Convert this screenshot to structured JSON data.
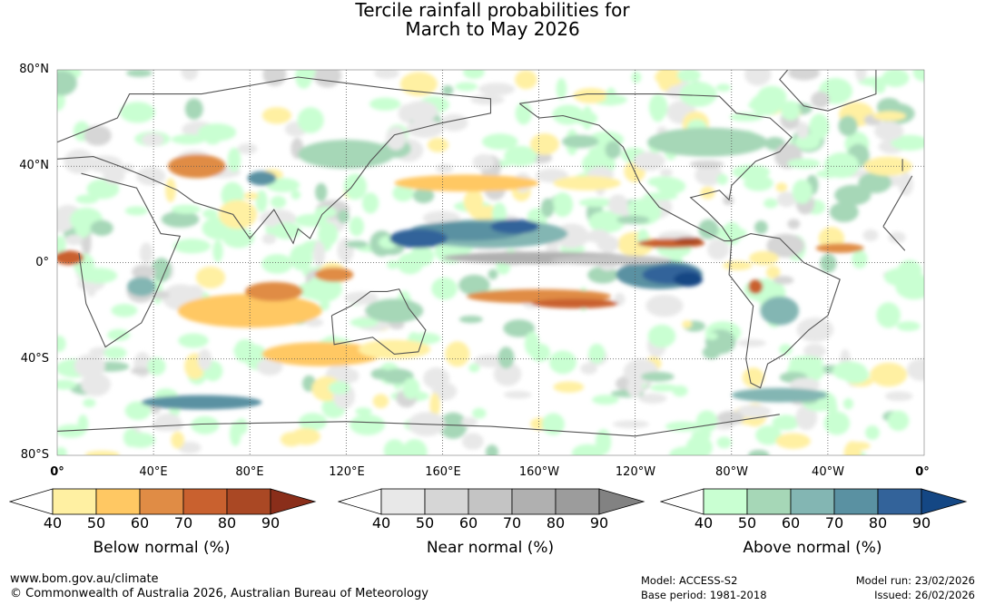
{
  "title": {
    "line1": "Tercile rainfall probabilities for",
    "line2": "March to May 2026"
  },
  "map": {
    "lat_labels": [
      "80°N",
      "40°N",
      "0°",
      "40°S",
      "80°S"
    ],
    "lon_labels": [
      "0°",
      "40°E",
      "80°E",
      "120°E",
      "160°E",
      "160°W",
      "120°W",
      "80°W",
      "40°W",
      "0°"
    ],
    "colors": {
      "below": [
        "#fff0a2",
        "#ffc863",
        "#e08c45",
        "#c9612f",
        "#aa4824",
        "#8a2e1a"
      ],
      "near": [
        "#e8e8e8",
        "#d6d6d6",
        "#c4c4c4",
        "#b0b0b0",
        "#9c9c9c",
        "#828282"
      ],
      "above": [
        "#c9ffd2",
        "#a6d7b7",
        "#83b6b3",
        "#5a91a2",
        "#33639a",
        "#144784"
      ],
      "coastline": "#555555",
      "grid": "#555555"
    }
  },
  "legends": [
    {
      "title": "Below normal (%)",
      "ticks": [
        "40",
        "50",
        "60",
        "70",
        "80",
        "90"
      ]
    },
    {
      "title": "Near normal (%)",
      "ticks": [
        "40",
        "50",
        "60",
        "70",
        "80",
        "90"
      ]
    },
    {
      "title": "Above normal (%)",
      "ticks": [
        "40",
        "50",
        "60",
        "70",
        "80",
        "90"
      ]
    }
  ],
  "footer": {
    "website": "www.bom.gov.au/climate",
    "copyright": "© Commonwealth of Australia 2026, Australian Bureau of Meteorology",
    "model": "Model: ACCESS-S2",
    "base_period": "Base period: 1981-2018",
    "model_run": "Model run: 23/02/2026",
    "issued": "Issued: 26/02/2026"
  }
}
